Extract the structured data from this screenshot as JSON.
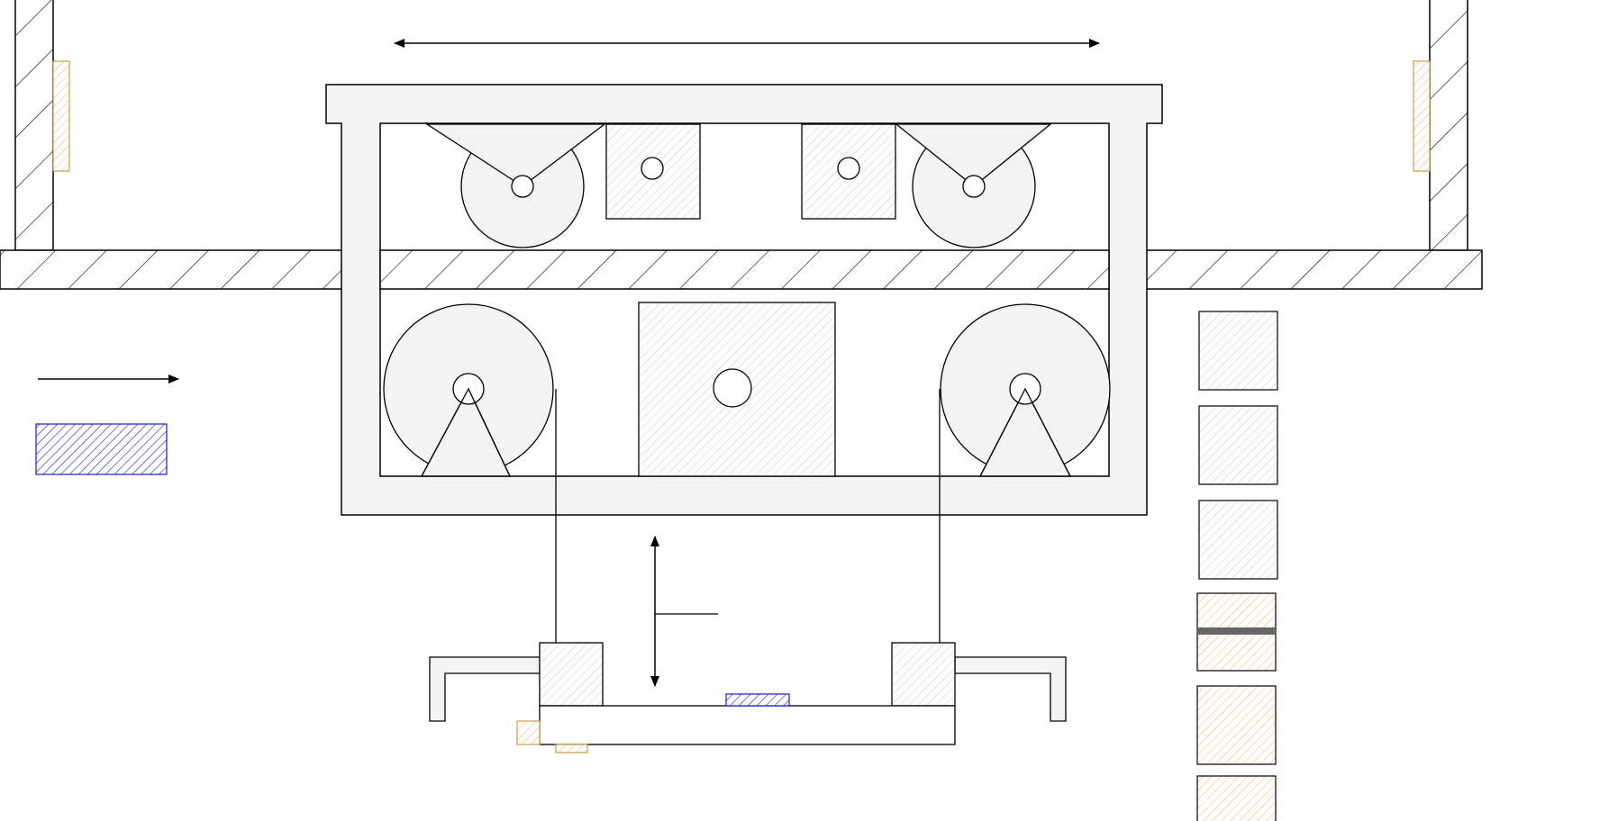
{
  "colors": {
    "background": "#ffffff",
    "stroke": "#000000",
    "frame_fill": "#f3f3f3",
    "green_hatch": "#a8d8a8",
    "orange_hatch": "#f0b060",
    "blue_hatch": "#1a1acc",
    "dark_bar": "#666666"
  },
  "icons": {
    "horizontal_arrow": "double-headed-arrow",
    "vertical_arrow": "double-headed-arrow",
    "legend_arrow": "right-arrow"
  }
}
